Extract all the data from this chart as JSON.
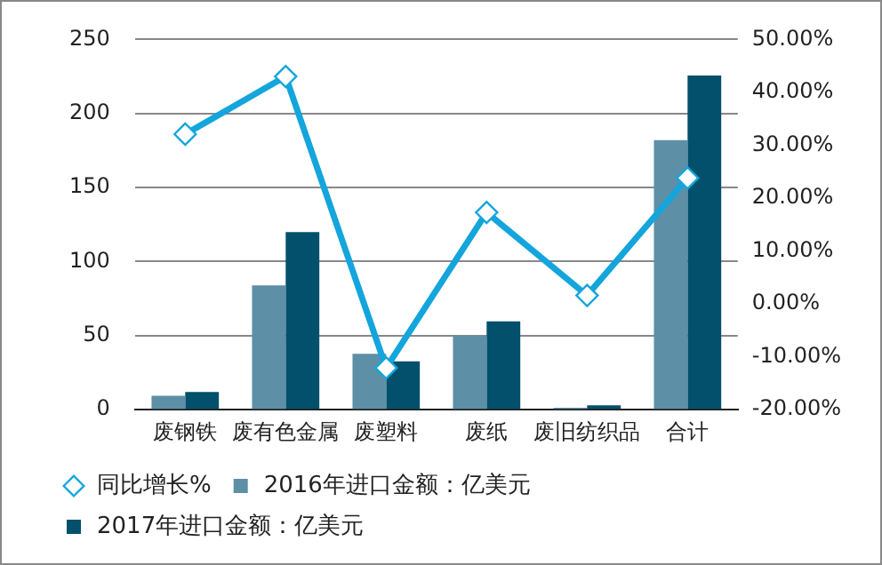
{
  "chart_data": {
    "type": "bar",
    "categories": [
      "废钢铁",
      "废有色金属",
      "废塑料",
      "废纸",
      "废旧纺织品",
      "合计"
    ],
    "series": [
      {
        "name": "2016年进口金额：亿美元",
        "color": "#5d8fa7",
        "values": [
          9.4,
          84,
          37.7,
          50,
          1.3,
          182
        ]
      },
      {
        "name": "2017年进口金额：亿美元",
        "color": "#02506c",
        "values": [
          12,
          120,
          32.6,
          59.6,
          3,
          225.6
        ]
      },
      {
        "name": "同比增长%",
        "type": "line",
        "axis": "y2",
        "color": "#13a5dc",
        "marker": "diamond",
        "values": [
          32.1,
          43,
          -12.1,
          17.3,
          1.6,
          23.8
        ]
      }
    ],
    "ylim": [
      0,
      250
    ],
    "yticks": [
      0,
      50,
      100,
      150,
      200,
      250
    ],
    "y2lim": [
      -20,
      50
    ],
    "y2ticks": [
      {
        "value": -20,
        "label": "-20.00%"
      },
      {
        "value": -10,
        "label": "-10.00%"
      },
      {
        "value": 0,
        "label": "0.00%"
      },
      {
        "value": 10,
        "label": "10.00%"
      },
      {
        "value": 20,
        "label": "20.00%"
      },
      {
        "value": 30,
        "label": "30.00%"
      },
      {
        "value": 40,
        "label": "40.00%"
      },
      {
        "value": 50,
        "label": "50.00%"
      }
    ],
    "grid": "y",
    "legend": "bottom"
  }
}
